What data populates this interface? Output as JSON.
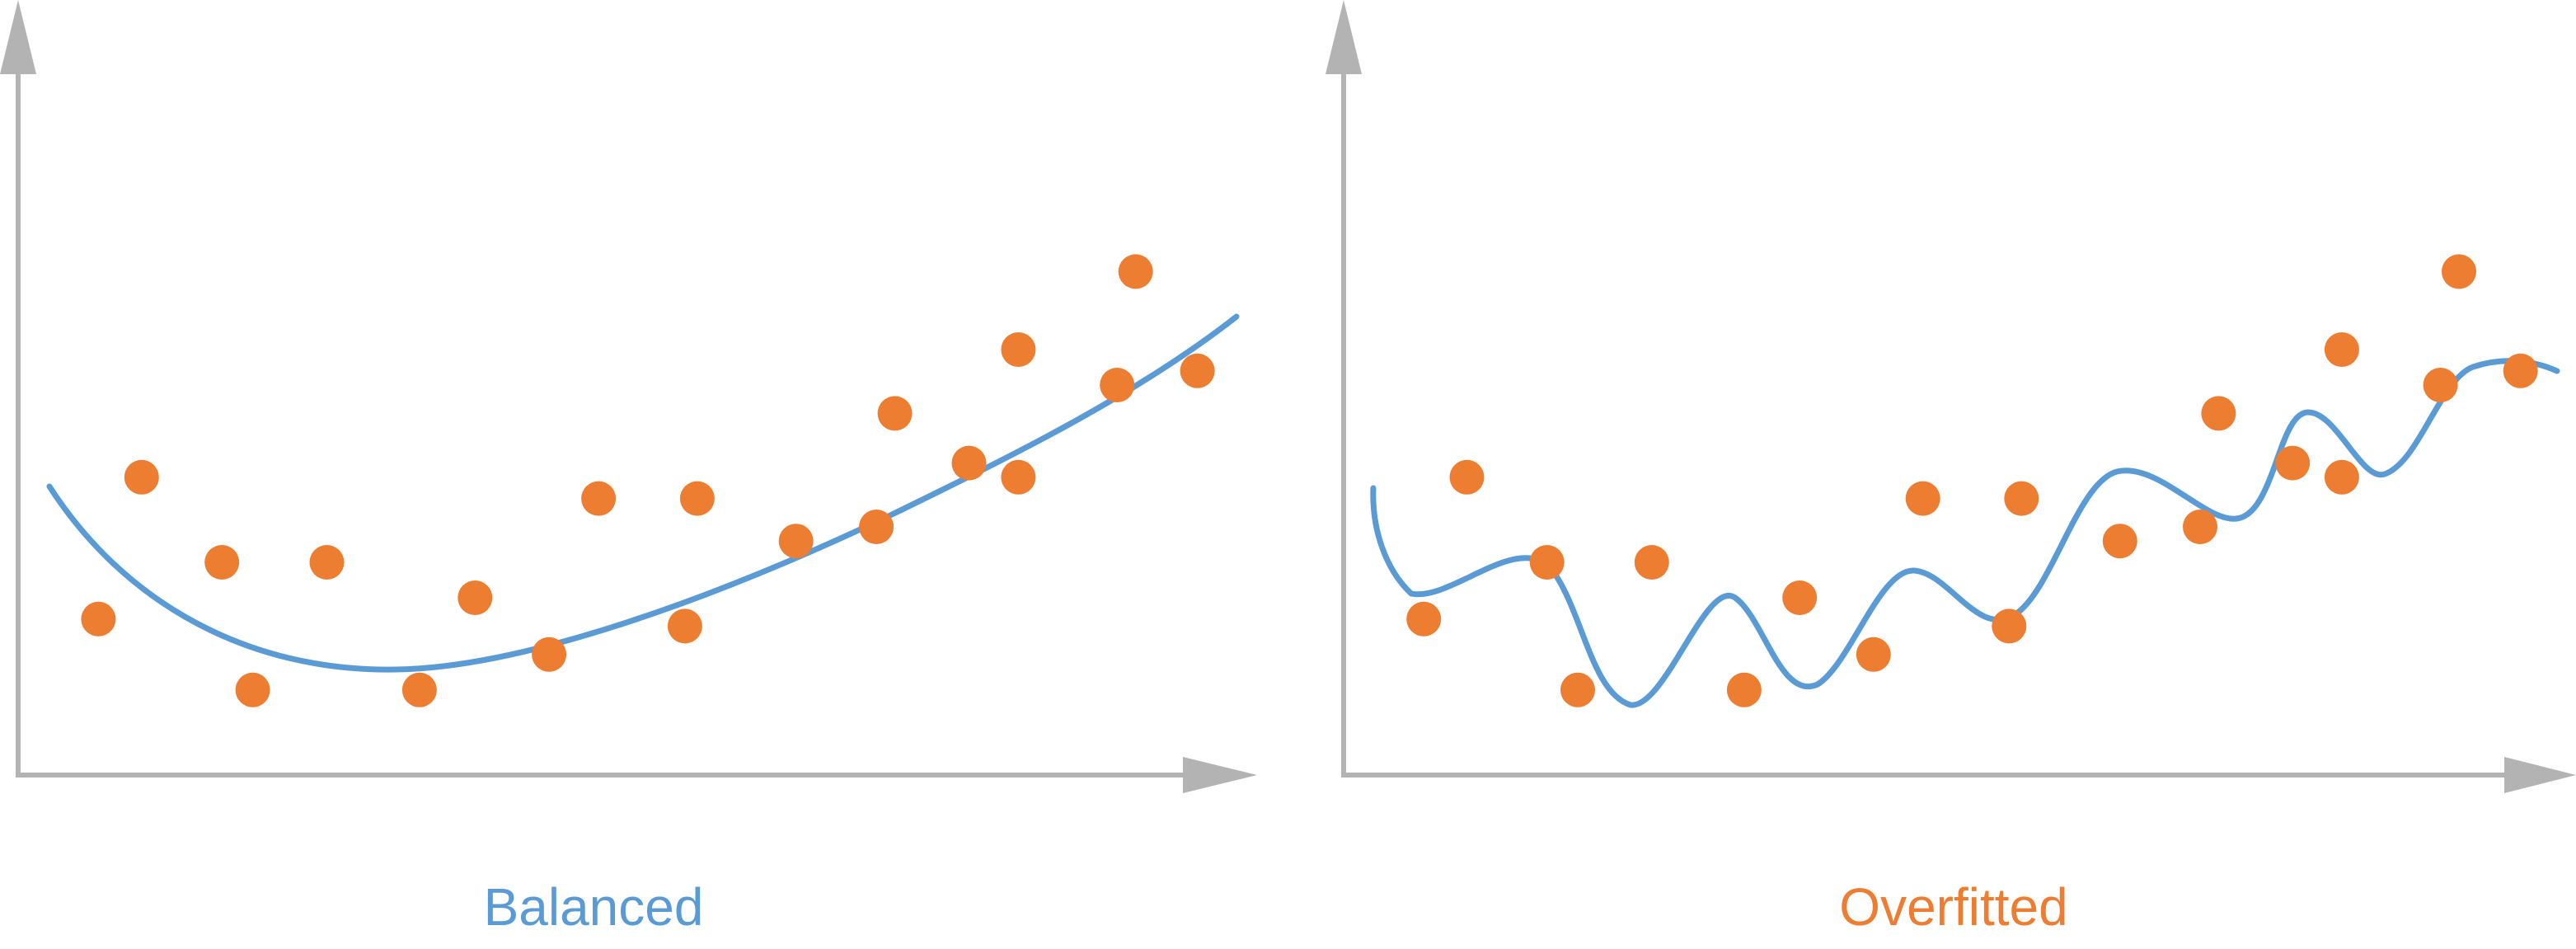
{
  "colors": {
    "axis": "#b3b3b3",
    "curve": "#5b9bd5",
    "points": "#ed7d31",
    "label_balanced": "#5b9bd5",
    "label_overfitted": "#ed7d31"
  },
  "panels": [
    {
      "id": "balanced",
      "label": "Balanced",
      "curve_type": "smooth-quadratic-fit",
      "points": [
        [
          0.065,
          0.22
        ],
        [
          0.1,
          0.42
        ],
        [
          0.165,
          0.3
        ],
        [
          0.19,
          0.12
        ],
        [
          0.25,
          0.3
        ],
        [
          0.325,
          0.12
        ],
        [
          0.37,
          0.25
        ],
        [
          0.43,
          0.17
        ],
        [
          0.47,
          0.39
        ],
        [
          0.54,
          0.21
        ],
        [
          0.55,
          0.39
        ],
        [
          0.63,
          0.33
        ],
        [
          0.695,
          0.35
        ],
        [
          0.71,
          0.51
        ],
        [
          0.77,
          0.44
        ],
        [
          0.81,
          0.42
        ],
        [
          0.81,
          0.6
        ],
        [
          0.89,
          0.55
        ],
        [
          0.905,
          0.71
        ],
        [
          0.955,
          0.57
        ]
      ]
    },
    {
      "id": "overfitted",
      "label": "Overfitted",
      "curve_type": "wiggly-overfit",
      "points": [
        [
          0.065,
          0.22
        ],
        [
          0.1,
          0.42
        ],
        [
          0.165,
          0.3
        ],
        [
          0.19,
          0.12
        ],
        [
          0.25,
          0.3
        ],
        [
          0.325,
          0.12
        ],
        [
          0.37,
          0.25
        ],
        [
          0.43,
          0.17
        ],
        [
          0.47,
          0.39
        ],
        [
          0.54,
          0.21
        ],
        [
          0.55,
          0.39
        ],
        [
          0.63,
          0.33
        ],
        [
          0.695,
          0.35
        ],
        [
          0.71,
          0.51
        ],
        [
          0.77,
          0.44
        ],
        [
          0.81,
          0.42
        ],
        [
          0.81,
          0.6
        ],
        [
          0.89,
          0.55
        ],
        [
          0.905,
          0.71
        ],
        [
          0.955,
          0.57
        ]
      ]
    }
  ]
}
